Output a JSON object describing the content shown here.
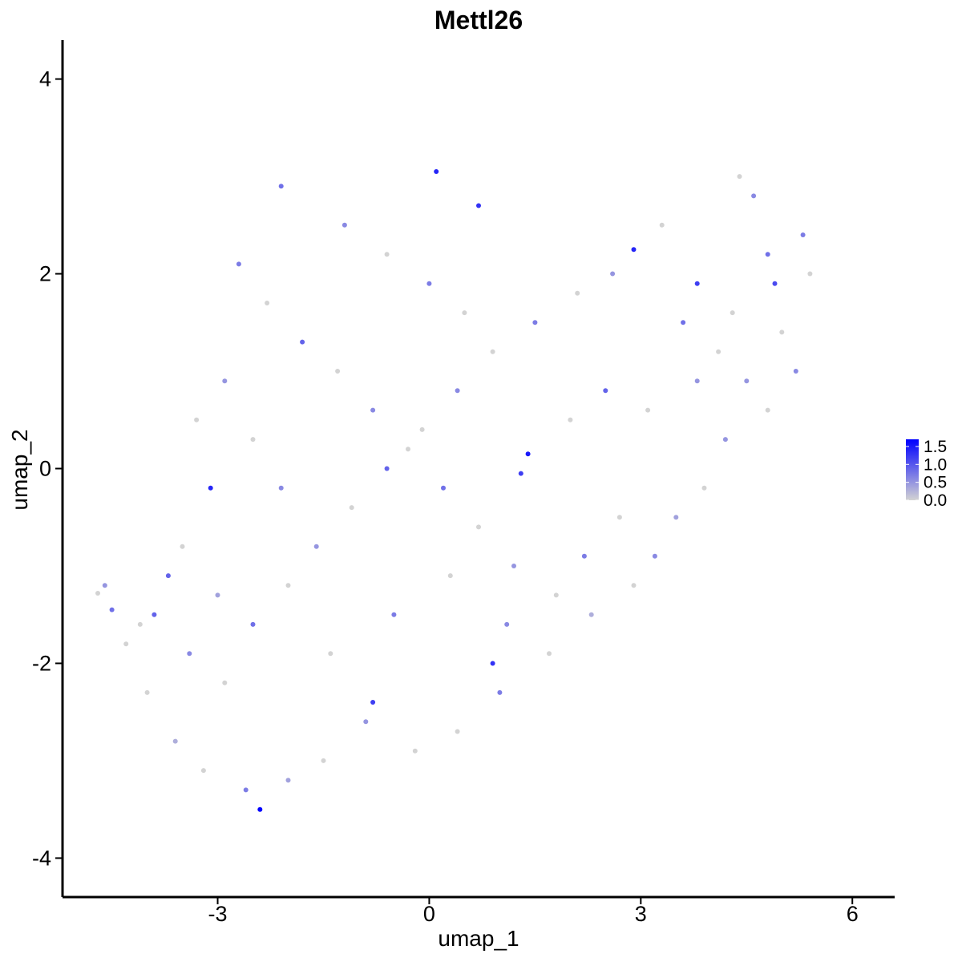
{
  "chart_data": {
    "type": "scatter",
    "title": "Mettl26",
    "xlabel": "umap_1",
    "ylabel": "umap_2",
    "xlim": [
      -5.2,
      6.6
    ],
    "ylim": [
      -4.4,
      4.4
    ],
    "x_ticks": [
      -3,
      0,
      3,
      6
    ],
    "x_tick_labels": [
      "-3",
      "0",
      "3",
      "6"
    ],
    "y_ticks": [
      -4,
      -2,
      0,
      2,
      4
    ],
    "y_tick_labels": [
      "-4",
      "-2",
      "0",
      "2",
      "4"
    ],
    "grid": false,
    "legend_placement": "right",
    "color_scale": {
      "low_color": "#d3d3d3",
      "high_color": "#0000ff",
      "range": [
        0,
        1.7
      ],
      "ticks": [
        1.5,
        1.0,
        0.5,
        0.0
      ],
      "tick_labels": [
        "1.5",
        "1.0",
        "0.5",
        "0.0"
      ]
    },
    "points": [
      [
        -4.7,
        -1.28,
        0.0
      ],
      [
        -4.6,
        -1.2,
        0.5
      ],
      [
        -4.5,
        -1.45,
        0.8
      ],
      [
        -4.3,
        -1.8,
        0.0
      ],
      [
        -4.1,
        -1.6,
        0.0
      ],
      [
        -3.9,
        -1.5,
        0.9
      ],
      [
        -3.7,
        -1.1,
        0.9
      ],
      [
        -2.4,
        -3.5,
        1.7
      ],
      [
        -3.1,
        -0.2,
        1.4
      ],
      [
        0.1,
        3.05,
        1.4
      ],
      [
        0.7,
        2.7,
        1.3
      ],
      [
        1.4,
        0.15,
        1.5
      ],
      [
        1.3,
        -0.05,
        1.2
      ],
      [
        2.9,
        2.25,
        1.4
      ],
      [
        3.8,
        1.9,
        1.2
      ],
      [
        4.9,
        1.9,
        1.1
      ],
      [
        -0.8,
        -2.4,
        1.2
      ],
      [
        0.9,
        -2.0,
        1.3
      ],
      [
        -2.1,
        2.9,
        0.8
      ],
      [
        4.4,
        3.0,
        0.0
      ],
      [
        4.6,
        2.8,
        0.6
      ],
      [
        5.3,
        2.4,
        0.7
      ],
      [
        5.4,
        2.0,
        0.0
      ],
      [
        5.2,
        1.0,
        0.6
      ],
      [
        4.8,
        0.6,
        0.0
      ],
      [
        4.2,
        0.3,
        0.5
      ],
      [
        3.9,
        -0.2,
        0.0
      ],
      [
        3.5,
        -0.5,
        0.4
      ],
      [
        3.2,
        -0.9,
        0.6
      ],
      [
        2.9,
        -1.2,
        0.0
      ],
      [
        2.3,
        -1.5,
        0.3
      ],
      [
        1.7,
        -1.9,
        0.0
      ],
      [
        1.0,
        -2.3,
        0.7
      ],
      [
        0.4,
        -2.7,
        0.0
      ],
      [
        -0.2,
        -2.9,
        0.0
      ],
      [
        -0.9,
        -2.6,
        0.5
      ],
      [
        -1.5,
        -3.0,
        0.0
      ],
      [
        -2.0,
        -3.2,
        0.4
      ],
      [
        -2.6,
        -3.3,
        0.7
      ],
      [
        -3.2,
        -3.1,
        0.0
      ],
      [
        -3.6,
        -2.8,
        0.3
      ],
      [
        -4.0,
        -2.3,
        0.0
      ],
      [
        -3.4,
        -1.9,
        0.6
      ],
      [
        -2.9,
        -2.2,
        0.0
      ],
      [
        -2.5,
        -1.6,
        0.8
      ],
      [
        -2.0,
        -1.2,
        0.0
      ],
      [
        -1.6,
        -0.8,
        0.5
      ],
      [
        -1.1,
        -0.4,
        0.0
      ],
      [
        -0.6,
        0.0,
        0.9
      ],
      [
        -0.1,
        0.4,
        0.0
      ],
      [
        0.4,
        0.8,
        0.6
      ],
      [
        0.9,
        1.2,
        0.0
      ],
      [
        1.5,
        1.5,
        0.7
      ],
      [
        2.1,
        1.8,
        0.0
      ],
      [
        2.6,
        2.0,
        0.5
      ],
      [
        3.3,
        2.5,
        0.0
      ],
      [
        3.6,
        1.5,
        0.8
      ],
      [
        4.1,
        1.2,
        0.0
      ],
      [
        4.5,
        0.9,
        0.5
      ],
      [
        5.0,
        1.4,
        0.0
      ],
      [
        -2.7,
        2.1,
        0.7
      ],
      [
        -2.3,
        1.7,
        0.0
      ],
      [
        -1.8,
        1.3,
        0.9
      ],
      [
        -1.3,
        1.0,
        0.0
      ],
      [
        -0.8,
        0.6,
        0.6
      ],
      [
        -0.3,
        0.2,
        0.0
      ],
      [
        0.2,
        -0.2,
        0.8
      ],
      [
        0.7,
        -0.6,
        0.0
      ],
      [
        1.2,
        -1.0,
        0.5
      ],
      [
        1.8,
        -1.3,
        0.0
      ],
      [
        2.2,
        -0.9,
        0.7
      ],
      [
        2.7,
        -0.5,
        0.0
      ],
      [
        -1.2,
        2.5,
        0.6
      ],
      [
        -0.6,
        2.2,
        0.0
      ],
      [
        0.0,
        1.9,
        0.7
      ],
      [
        0.5,
        1.6,
        0.0
      ],
      [
        -3.3,
        0.5,
        0.0
      ],
      [
        -2.9,
        0.9,
        0.5
      ],
      [
        -2.5,
        0.3,
        0.0
      ],
      [
        -2.1,
        -0.2,
        0.6
      ],
      [
        -3.5,
        -0.8,
        0.0
      ],
      [
        -3.0,
        -1.3,
        0.4
      ],
      [
        -1.4,
        -1.9,
        0.0
      ],
      [
        -0.5,
        -1.5,
        0.7
      ],
      [
        0.3,
        -1.1,
        0.0
      ],
      [
        1.1,
        -1.6,
        0.6
      ],
      [
        2.0,
        0.5,
        0.0
      ],
      [
        2.5,
        0.8,
        0.9
      ],
      [
        3.1,
        0.6,
        0.0
      ],
      [
        3.8,
        0.9,
        0.5
      ],
      [
        4.3,
        1.6,
        0.0
      ],
      [
        4.8,
        2.2,
        0.8
      ]
    ]
  }
}
